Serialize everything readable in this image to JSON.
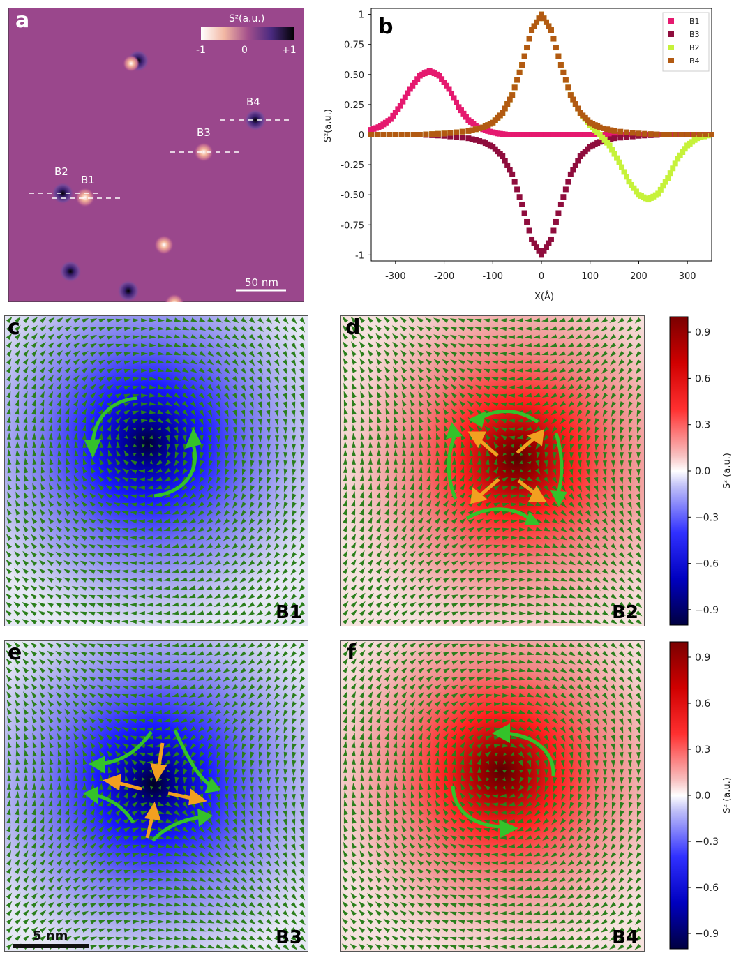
{
  "colors": {
    "map_background": "#9a478c",
    "B1": "#e5196f",
    "B3": "#8f0d3d",
    "B2": "#c6f23a",
    "B4": "#b25a12",
    "blue": "#0000ff",
    "red": "#ff0000",
    "spin_arrow": "#2b7f1c",
    "curl_arrow": "#34c22a",
    "radial_arrow": "#f2a020"
  },
  "panel_a": {
    "letter": "a",
    "colorbar_title": "Sᶻ(a.u.)",
    "colorbar_ticks": [
      "-1",
      "0",
      "+1"
    ],
    "labels": [
      "B4",
      "B3",
      "B2",
      "B1"
    ],
    "scalebar": "50 nm"
  },
  "panel_b": {
    "letter": "b"
  },
  "chart_data": {
    "type": "scatter",
    "xlabel": "X(Å)",
    "ylabel": "Sᶻ(a.u.)",
    "xlim": [
      -350,
      350
    ],
    "ylim": [
      -1.05,
      1.05
    ],
    "x_ticks": [
      -300,
      -200,
      -100,
      0,
      100,
      200,
      300
    ],
    "y_ticks": [
      1,
      0.75,
      0.5,
      0.25,
      0,
      -0.25,
      -0.5,
      -0.75,
      -1
    ],
    "y_tick_labels": [
      "1",
      "0.75",
      "0.50",
      "0.25",
      "0",
      "-0.25",
      "-0.50",
      "-0.75",
      "-1"
    ],
    "legend_position": "top-right",
    "series": [
      {
        "name": "B1",
        "color": "#e5196f",
        "x": [
          -350,
          -330,
          -310,
          -290,
          -270,
          -250,
          -230,
          -210,
          -190,
          -170,
          -150,
          -130,
          -110,
          -90,
          -70,
          -50,
          -30,
          -10,
          10,
          30,
          50,
          70,
          90,
          110,
          130,
          150,
          170,
          190,
          210,
          230,
          250,
          270,
          290,
          310,
          330,
          350
        ],
        "y": [
          0.04,
          0.07,
          0.13,
          0.24,
          0.38,
          0.49,
          0.53,
          0.49,
          0.38,
          0.23,
          0.12,
          0.06,
          0.03,
          0.01,
          0,
          0,
          0,
          0,
          0,
          0,
          0,
          0,
          0,
          0,
          0,
          0,
          0,
          0,
          0,
          0,
          0,
          0,
          0,
          0,
          0,
          0
        ]
      },
      {
        "name": "B3",
        "color": "#8f0d3d",
        "x": [
          -350,
          -300,
          -250,
          -200,
          -150,
          -120,
          -100,
          -80,
          -60,
          -40,
          -20,
          0,
          20,
          40,
          60,
          80,
          100,
          120,
          150,
          200,
          250,
          300,
          350
        ],
        "y": [
          0,
          0,
          0,
          -0.01,
          -0.03,
          -0.06,
          -0.1,
          -0.18,
          -0.33,
          -0.58,
          -0.87,
          -1.0,
          -0.87,
          -0.58,
          -0.33,
          -0.18,
          -0.1,
          -0.06,
          -0.03,
          -0.01,
          0,
          0,
          0
        ]
      },
      {
        "name": "B2",
        "color": "#c6f23a",
        "x": [
          -350,
          -300,
          -250,
          -200,
          -150,
          -120,
          -100,
          -80,
          -60,
          -40,
          -20,
          0,
          20,
          40,
          60,
          80,
          100,
          120,
          140,
          160,
          180,
          200,
          220,
          240,
          260,
          280,
          300,
          320,
          350
        ],
        "y": [
          0,
          0,
          0,
          0.01,
          0.03,
          0.06,
          0.1,
          0.18,
          0.33,
          0.58,
          0.87,
          1.0,
          0.87,
          0.58,
          0.33,
          0.18,
          0.08,
          0.0,
          -0.09,
          -0.23,
          -0.39,
          -0.5,
          -0.54,
          -0.49,
          -0.36,
          -0.2,
          -0.09,
          -0.03,
          0.0
        ]
      },
      {
        "name": "B4",
        "color": "#b25a12",
        "x": [
          -350,
          -300,
          -250,
          -200,
          -150,
          -120,
          -100,
          -80,
          -60,
          -40,
          -20,
          0,
          20,
          40,
          60,
          80,
          100,
          120,
          150,
          200,
          250,
          300,
          350
        ],
        "y": [
          0,
          0,
          0,
          0.01,
          0.03,
          0.06,
          0.1,
          0.18,
          0.33,
          0.58,
          0.87,
          1.0,
          0.87,
          0.58,
          0.33,
          0.18,
          0.1,
          0.06,
          0.03,
          0.01,
          0,
          0,
          0
        ]
      }
    ]
  },
  "colorbar": {
    "ticks": [
      0.9,
      0.6,
      0.3,
      0.0,
      -0.3,
      -0.6,
      -0.9
    ],
    "tick_labels": [
      "0.9",
      "0.6",
      "0.3",
      "0.0",
      "−0.3",
      "−0.6",
      "−0.9"
    ],
    "label": "Sᶻ (a.u.)"
  },
  "panels": [
    {
      "letter": "c",
      "tag": "B1"
    },
    {
      "letter": "d",
      "tag": "B2"
    },
    {
      "letter": "e",
      "tag": "B3",
      "scalebar": "5 nm"
    },
    {
      "letter": "f",
      "tag": "B4"
    }
  ]
}
